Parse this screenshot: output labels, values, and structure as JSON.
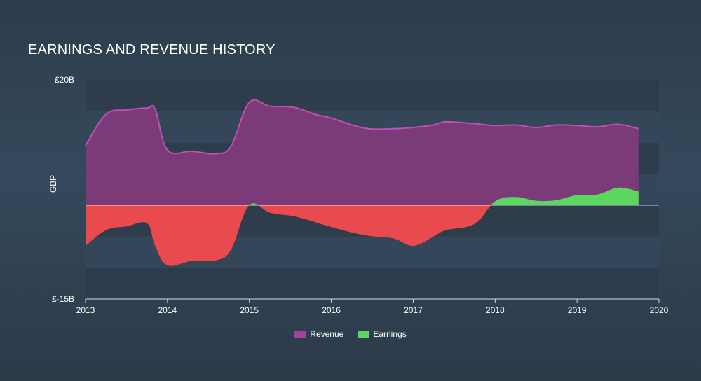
{
  "title": "EARNINGS AND REVENUE HISTORY",
  "chart_data": {
    "type": "area",
    "title": "EARNINGS AND REVENUE HISTORY",
    "ylabel": "GBP",
    "ylim": [
      -15,
      20
    ],
    "y_tick_labels": {
      "top": "£20B",
      "bottom": "£-15B"
    },
    "xlim": [
      2013,
      2020
    ],
    "x_ticks": [
      "2013",
      "2014",
      "2015",
      "2016",
      "2017",
      "2018",
      "2019",
      "2020"
    ],
    "legend": [
      "Revenue",
      "Earnings"
    ],
    "colors": {
      "revenue": "#7b3a78",
      "revenue_line": "#c04fb6",
      "earnings_positive": "#5bd65f",
      "earnings_negative": "#e84a4e",
      "zero_line": "#ffffff",
      "band": "#2f3d4c"
    },
    "series": [
      {
        "name": "Revenue",
        "x": [
          2013.0,
          2013.25,
          2013.5,
          2013.75,
          2013.85,
          2014.0,
          2014.3,
          2014.6,
          2014.78,
          2015.0,
          2015.25,
          2015.55,
          2015.8,
          2016.0,
          2016.4,
          2016.75,
          2017.0,
          2017.25,
          2017.4,
          2017.75,
          2018.0,
          2018.25,
          2018.5,
          2018.75,
          2019.0,
          2019.25,
          2019.5,
          2019.75
        ],
        "values": [
          9.5,
          14.5,
          15.2,
          15.5,
          15.3,
          8.8,
          8.6,
          8.2,
          9.5,
          16.4,
          15.8,
          15.6,
          14.5,
          13.9,
          12.3,
          12.2,
          12.4,
          12.8,
          13.3,
          13.0,
          12.7,
          12.8,
          12.4,
          12.8,
          12.7,
          12.5,
          12.9,
          12.2
        ]
      },
      {
        "name": "Earnings",
        "x": [
          2013.0,
          2013.25,
          2013.5,
          2013.75,
          2013.85,
          2014.0,
          2014.3,
          2014.6,
          2014.78,
          2015.0,
          2015.25,
          2015.55,
          2015.8,
          2016.0,
          2016.4,
          2016.75,
          2017.0,
          2017.25,
          2017.4,
          2017.75,
          2018.0,
          2018.25,
          2018.5,
          2018.75,
          2019.0,
          2019.25,
          2019.5,
          2019.75
        ],
        "values": [
          -6.5,
          -4.0,
          -3.4,
          -2.9,
          -6.5,
          -9.6,
          -8.9,
          -8.8,
          -7.0,
          0.0,
          -1.2,
          -1.8,
          -2.7,
          -3.5,
          -4.8,
          -5.3,
          -6.5,
          -5.0,
          -4.0,
          -3.0,
          0.6,
          1.3,
          0.7,
          0.8,
          1.6,
          1.7,
          2.8,
          2.2
        ]
      }
    ]
  }
}
